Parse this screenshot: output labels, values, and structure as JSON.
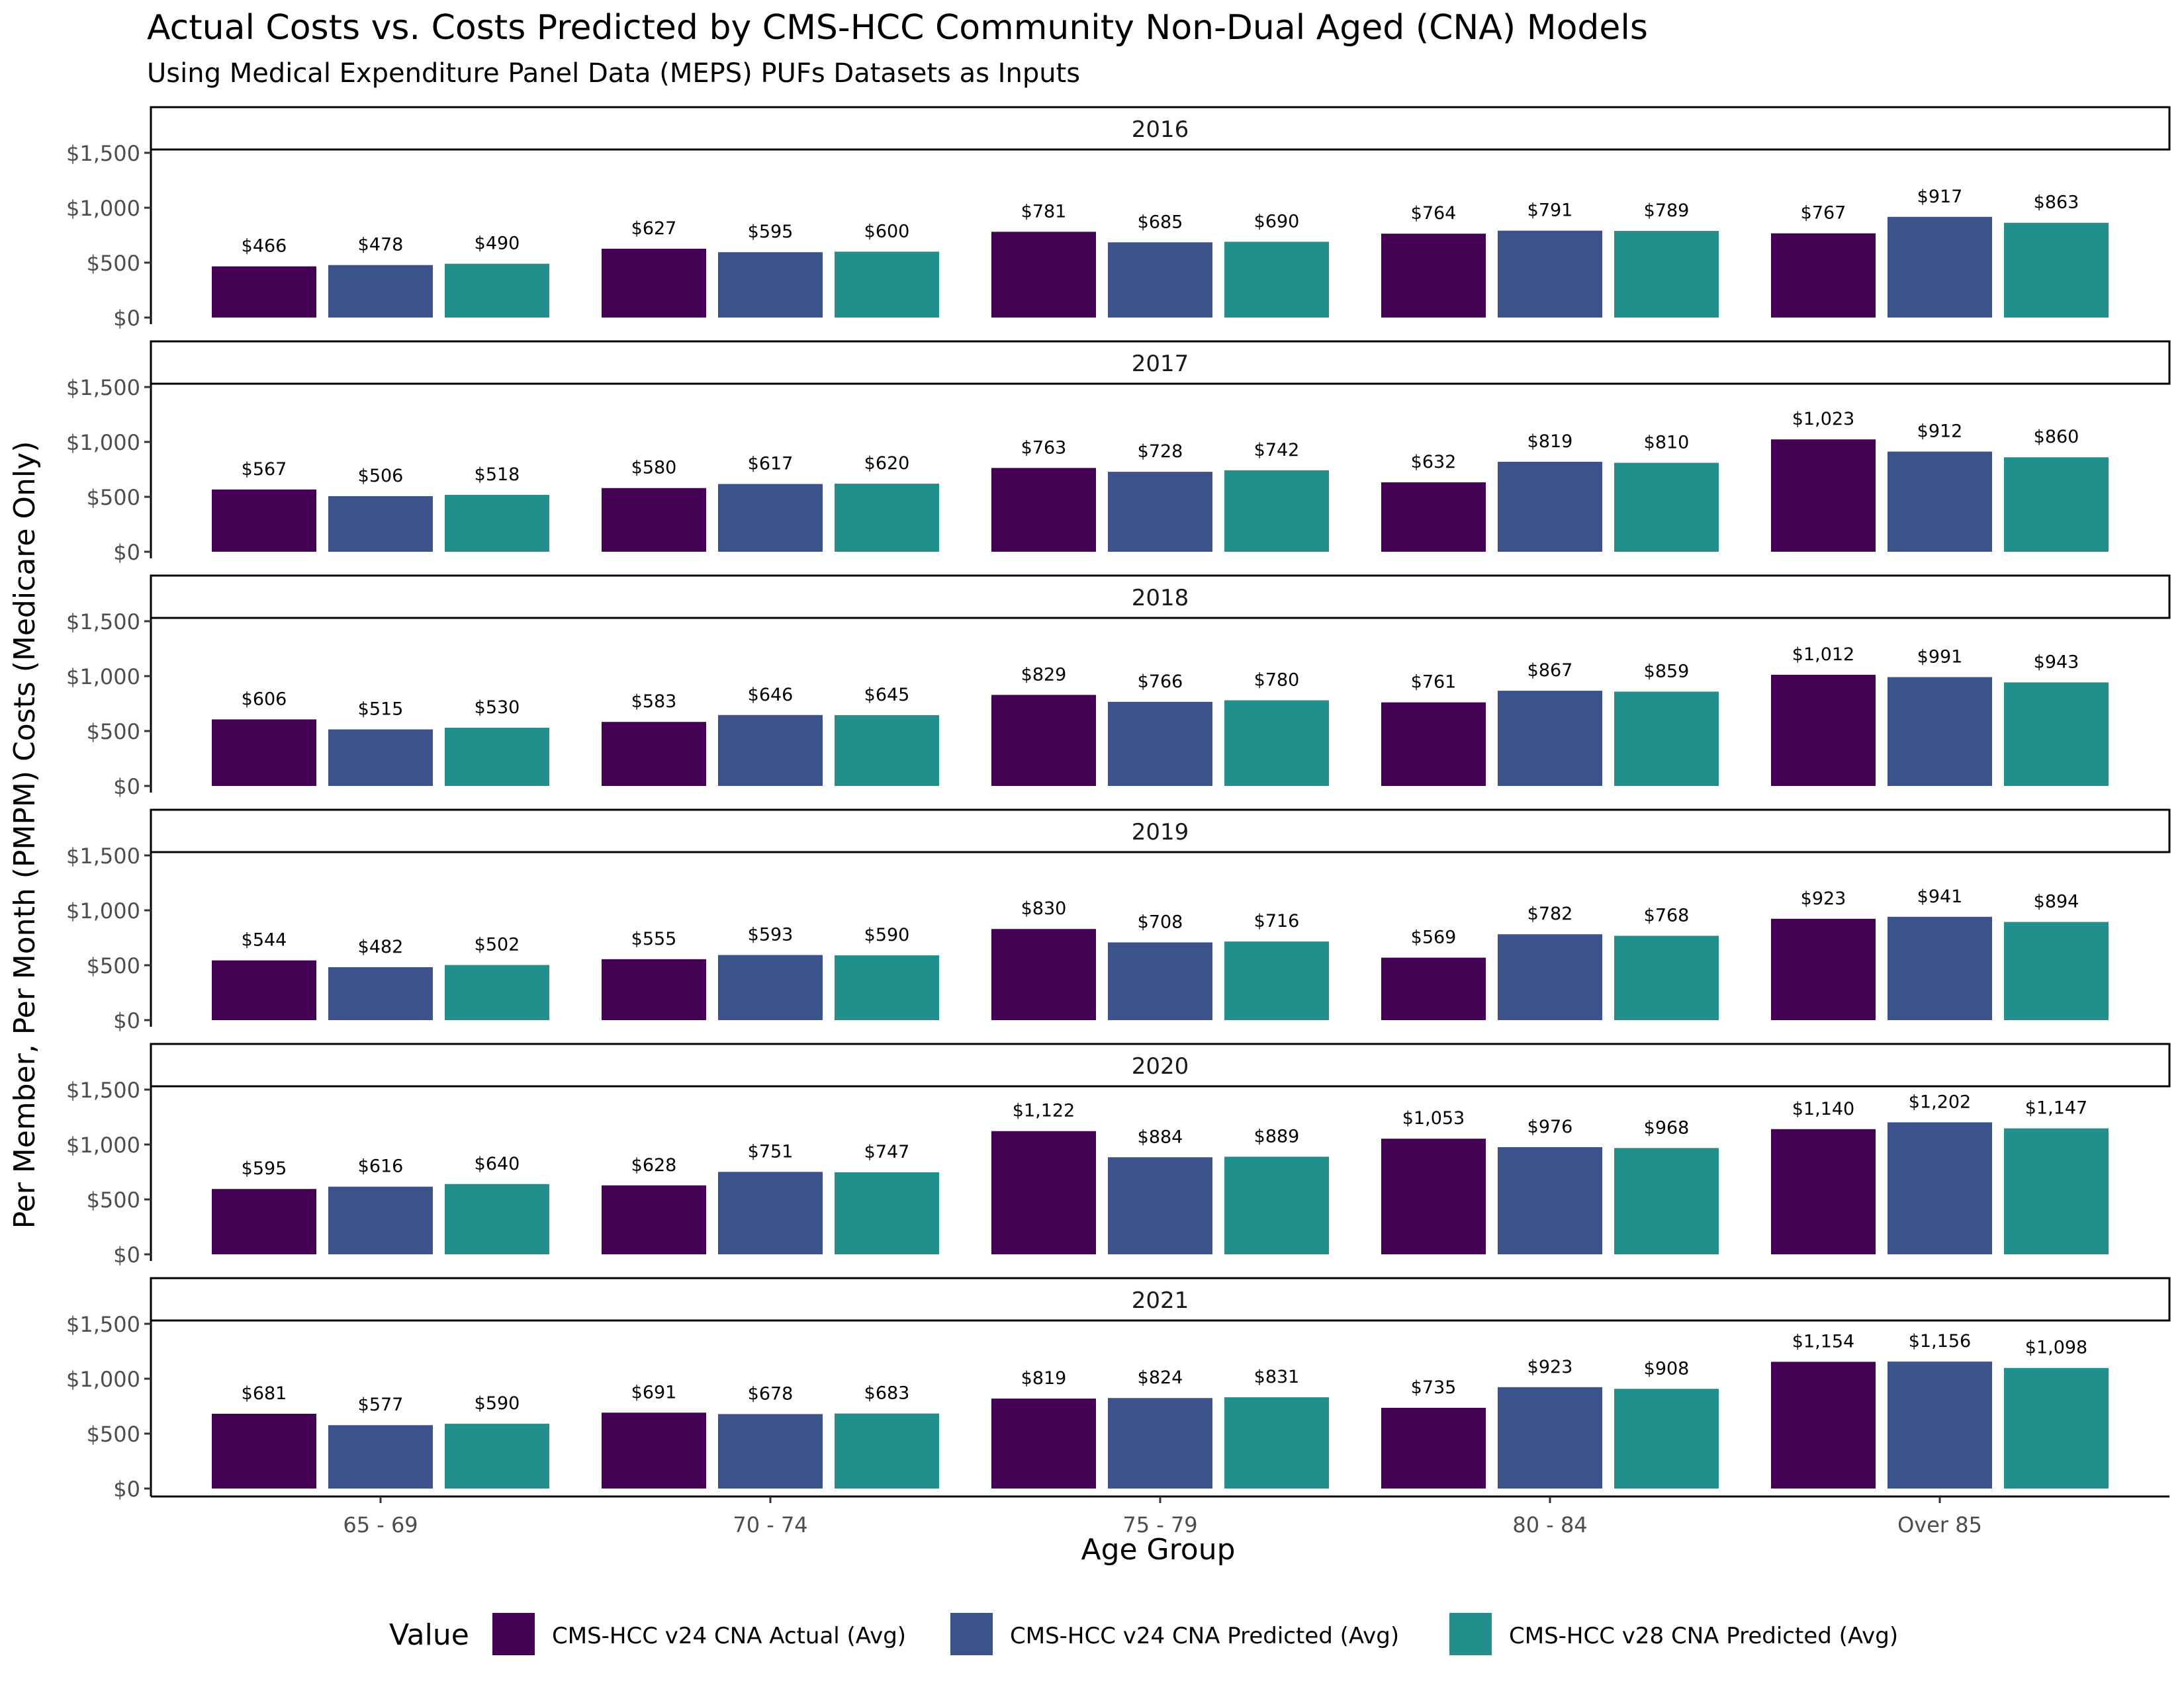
{
  "chart_data": {
    "type": "bar",
    "title": "Actual Costs vs. Costs Predicted by CMS-HCC Community Non-Dual Aged (CNA) Models",
    "subtitle": "Using Medical Expenditure Panel Data (MEPS) PUFs Datasets as Inputs",
    "xlabel": "Age Group",
    "ylabel": "Per Member, Per Month (PMPM) Costs (Medicare Only)",
    "ylim": [
      0,
      1500
    ],
    "y_ticks": [
      "$0",
      "$500",
      "$1,000",
      "$1,500"
    ],
    "y_tick_values": [
      0,
      500,
      1000,
      1500
    ],
    "categories": [
      "65 - 69",
      "70 - 74",
      "75 - 79",
      "80 - 84",
      "Over 85"
    ],
    "legend": {
      "title": "Value",
      "position": "bottom",
      "entries": [
        {
          "name": "CMS-HCC v24 CNA Actual (Avg)",
          "color": "#440154"
        },
        {
          "name": "CMS-HCC v24 CNA Predicted (Avg)",
          "color": "#3B528B"
        },
        {
          "name": "CMS-HCC v28 CNA Predicted (Avg)",
          "color": "#21908C"
        }
      ]
    },
    "panels": [
      {
        "facet": "2016",
        "series": [
          {
            "name": "CMS-HCC v24 CNA Actual (Avg)",
            "values": [
              466,
              627,
              781,
              764,
              767
            ],
            "labels": [
              "$466",
              "$627",
              "$781",
              "$764",
              "$767"
            ]
          },
          {
            "name": "CMS-HCC v24 CNA Predicted (Avg)",
            "values": [
              478,
              595,
              685,
              791,
              917
            ],
            "labels": [
              "$478",
              "$595",
              "$685",
              "$791",
              "$917"
            ]
          },
          {
            "name": "CMS-HCC v28 CNA Predicted (Avg)",
            "values": [
              490,
              600,
              690,
              789,
              863
            ],
            "labels": [
              "$490",
              "$600",
              "$690",
              "$789",
              "$863"
            ]
          }
        ]
      },
      {
        "facet": "2017",
        "series": [
          {
            "name": "CMS-HCC v24 CNA Actual (Avg)",
            "values": [
              567,
              580,
              763,
              632,
              1023
            ],
            "labels": [
              "$567",
              "$580",
              "$763",
              "$632",
              "$1,023"
            ]
          },
          {
            "name": "CMS-HCC v24 CNA Predicted (Avg)",
            "values": [
              506,
              617,
              728,
              819,
              912
            ],
            "labels": [
              "$506",
              "$617",
              "$728",
              "$819",
              "$912"
            ]
          },
          {
            "name": "CMS-HCC v28 CNA Predicted (Avg)",
            "values": [
              518,
              620,
              742,
              810,
              860
            ],
            "labels": [
              "$518",
              "$620",
              "$742",
              "$810",
              "$860"
            ]
          }
        ]
      },
      {
        "facet": "2018",
        "series": [
          {
            "name": "CMS-HCC v24 CNA Actual (Avg)",
            "values": [
              606,
              583,
              829,
              761,
              1012
            ],
            "labels": [
              "$606",
              "$583",
              "$829",
              "$761",
              "$1,012"
            ]
          },
          {
            "name": "CMS-HCC v24 CNA Predicted (Avg)",
            "values": [
              515,
              646,
              766,
              867,
              991
            ],
            "labels": [
              "$515",
              "$646",
              "$766",
              "$867",
              "$991"
            ]
          },
          {
            "name": "CMS-HCC v28 CNA Predicted (Avg)",
            "values": [
              530,
              645,
              780,
              859,
              943
            ],
            "labels": [
              "$530",
              "$645",
              "$780",
              "$859",
              "$943"
            ]
          }
        ]
      },
      {
        "facet": "2019",
        "series": [
          {
            "name": "CMS-HCC v24 CNA Actual (Avg)",
            "values": [
              544,
              555,
              830,
              569,
              923
            ],
            "labels": [
              "$544",
              "$555",
              "$830",
              "$569",
              "$923"
            ]
          },
          {
            "name": "CMS-HCC v24 CNA Predicted (Avg)",
            "values": [
              482,
              593,
              708,
              782,
              941
            ],
            "labels": [
              "$482",
              "$593",
              "$708",
              "$782",
              "$941"
            ]
          },
          {
            "name": "CMS-HCC v28 CNA Predicted (Avg)",
            "values": [
              502,
              590,
              716,
              768,
              894
            ],
            "labels": [
              "$502",
              "$590",
              "$716",
              "$768",
              "$894"
            ]
          }
        ]
      },
      {
        "facet": "2020",
        "series": [
          {
            "name": "CMS-HCC v24 CNA Actual (Avg)",
            "values": [
              595,
              628,
              1122,
              1053,
              1140
            ],
            "labels": [
              "$595",
              "$628",
              "$1,122",
              "$1,053",
              "$1,140"
            ]
          },
          {
            "name": "CMS-HCC v24 CNA Predicted (Avg)",
            "values": [
              616,
              751,
              884,
              976,
              1202
            ],
            "labels": [
              "$616",
              "$751",
              "$884",
              "$976",
              "$1,202"
            ]
          },
          {
            "name": "CMS-HCC v28 CNA Predicted (Avg)",
            "values": [
              640,
              747,
              889,
              968,
              1147
            ],
            "labels": [
              "$640",
              "$747",
              "$889",
              "$968",
              "$1,147"
            ]
          }
        ]
      },
      {
        "facet": "2021",
        "series": [
          {
            "name": "CMS-HCC v24 CNA Actual (Avg)",
            "values": [
              681,
              691,
              819,
              735,
              1154
            ],
            "labels": [
              "$681",
              "$691",
              "$819",
              "$735",
              "$1,154"
            ]
          },
          {
            "name": "CMS-HCC v24 CNA Predicted (Avg)",
            "values": [
              577,
              678,
              824,
              923,
              1156
            ],
            "labels": [
              "$577",
              "$678",
              "$824",
              "$923",
              "$1,156"
            ]
          },
          {
            "name": "CMS-HCC v28 CNA Predicted (Avg)",
            "values": [
              590,
              683,
              831,
              908,
              1098
            ],
            "labels": [
              "$590",
              "$683",
              "$831",
              "$908",
              "$1,098"
            ]
          }
        ]
      }
    ]
  }
}
